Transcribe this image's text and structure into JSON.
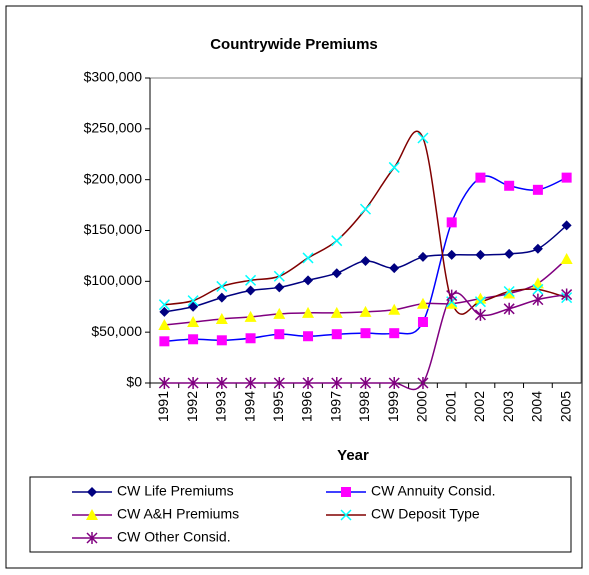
{
  "chart_data": {
    "type": "line",
    "title": "Countrywide Premiums",
    "xlabel": "Year",
    "categories": [
      "1991",
      "1992",
      "1993",
      "1994",
      "1995",
      "1996",
      "1997",
      "1998",
      "1999",
      "2000",
      "2001",
      "2002",
      "2003",
      "2004",
      "2005"
    ],
    "ylim": [
      0,
      300000
    ],
    "yticks": [
      {
        "value": 0,
        "label": "$0"
      },
      {
        "value": 50000,
        "label": "$50,000"
      },
      {
        "value": 100000,
        "label": "$100,000"
      },
      {
        "value": 150000,
        "label": "$150,000"
      },
      {
        "value": 200000,
        "label": "$200,000"
      },
      {
        "value": 250000,
        "label": "$250,000"
      },
      {
        "value": 300000,
        "label": "$300,000"
      }
    ],
    "legend": "bottom",
    "series": [
      {
        "name": "CW Life Premiums",
        "color": "#000080",
        "marker_color": "#000080",
        "marker": "diamond",
        "values": [
          70000,
          75000,
          84000,
          91000,
          94000,
          101000,
          108000,
          120000,
          113000,
          124000,
          126000,
          126000,
          127000,
          132000,
          155000
        ]
      },
      {
        "name": "CW Annuity Consid.",
        "color": "#0000ff",
        "marker_color": "#ff00ff",
        "marker": "square",
        "values": [
          41000,
          43000,
          42000,
          44000,
          48000,
          46000,
          48000,
          49000,
          49000,
          60000,
          158000,
          202000,
          194000,
          190000,
          202000
        ]
      },
      {
        "name": "CW A&H Premiums",
        "color": "#800080",
        "marker_color": "#ffff00",
        "marker": "triangle",
        "values": [
          57000,
          60000,
          63000,
          65000,
          68000,
          69000,
          69000,
          70000,
          72000,
          78000,
          78000,
          83000,
          88000,
          98000,
          122000
        ]
      },
      {
        "name": "CW Deposit Type",
        "color": "#800000",
        "marker_color": "#00ffff",
        "marker": "x",
        "values": [
          77000,
          81000,
          95000,
          101000,
          105000,
          123000,
          140000,
          171000,
          212000,
          241000,
          80000,
          80000,
          90000,
          92000,
          84000
        ]
      },
      {
        "name": "CW Other Consid.",
        "color": "#800080",
        "marker_color": "#800080",
        "marker": "asterisk",
        "values": [
          0,
          0,
          0,
          0,
          0,
          0,
          0,
          0,
          0,
          0,
          86000,
          67000,
          73000,
          82000,
          87000
        ]
      }
    ]
  }
}
